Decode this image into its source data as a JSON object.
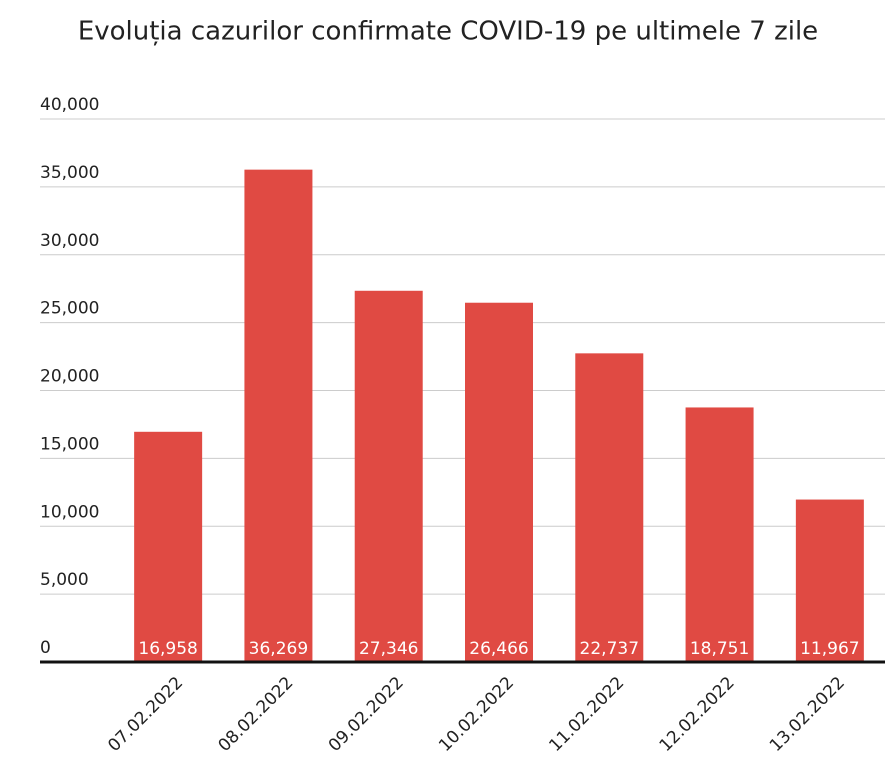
{
  "chart_data": {
    "type": "bar",
    "title": "Evoluția cazurilor confirmate COVID-19 pe ultimele 7 zile",
    "categories": [
      "07.02.2022",
      "08.02.2022",
      "09.02.2022",
      "10.02.2022",
      "11.02.2022",
      "12.02.2022",
      "13.02.2022"
    ],
    "values": [
      16958,
      36269,
      27346,
      26466,
      22737,
      18751,
      11967
    ],
    "value_labels": [
      "16,958",
      "36,269",
      "27,346",
      "26,466",
      "22,737",
      "18,751",
      "11,967"
    ],
    "color": "#e04a43",
    "ylim": [
      0,
      40000
    ],
    "yticks": [
      0,
      {
        "value": 5000,
        "label": "5,000"
      },
      {
        "value": 10000,
        "label": "10,000"
      },
      {
        "value": 15000,
        "label": "15,000"
      },
      {
        "value": 20000,
        "label": "20,000"
      },
      {
        "value": 25000,
        "label": "25,000"
      },
      {
        "value": 30000,
        "label": "30,000"
      },
      {
        "value": 35000,
        "label": "35,000"
      },
      {
        "value": 40000,
        "label": "40,000"
      }
    ],
    "grid": true
  }
}
